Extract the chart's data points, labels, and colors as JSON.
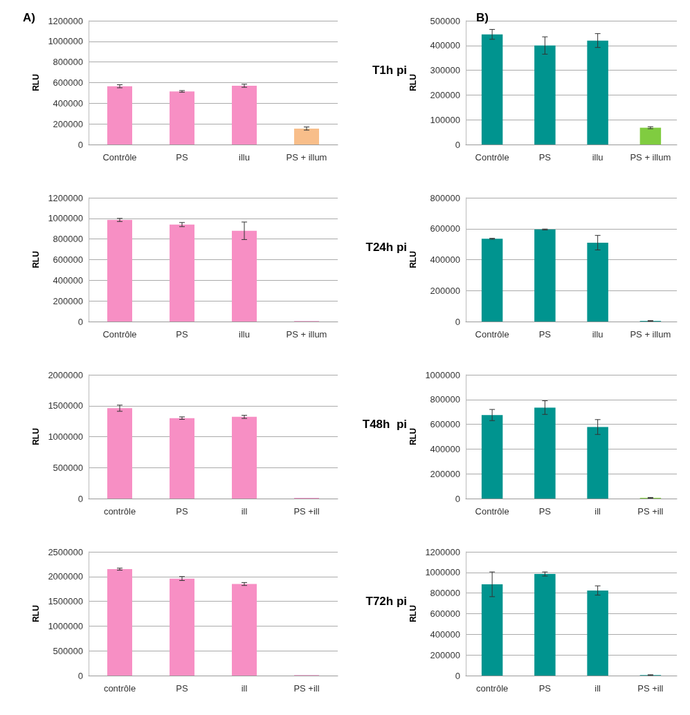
{
  "chart_data": [
    {
      "type": "bar",
      "title": "A)",
      "annotations": [
        "T1h pi"
      ],
      "ylabel": "RLU",
      "categories": [
        "Contrôle",
        "PS",
        "illu",
        "PS + illum"
      ],
      "values": [
        565000,
        515000,
        570000,
        155000
      ],
      "errors": [
        15000,
        8000,
        15000,
        15000
      ],
      "colors": [
        "#f78fc4",
        "#f78fc4",
        "#f78fc4",
        "#f8be8a"
      ],
      "ylim": [
        0,
        1200000
      ],
      "yticks": [
        0,
        200000,
        400000,
        600000,
        800000,
        1000000,
        1200000
      ],
      "grid": "y"
    },
    {
      "type": "bar",
      "title": "B)",
      "ylabel": "RLU",
      "categories": [
        "Contrôle",
        "PS",
        "illu",
        "PS + illum"
      ],
      "values": [
        445000,
        400000,
        420000,
        68000
      ],
      "errors": [
        20000,
        35000,
        28000,
        4000
      ],
      "colors": [
        "#00948f",
        "#00948f",
        "#00948f",
        "#80cc40"
      ],
      "ylim": [
        0,
        500000
      ],
      "yticks": [
        0,
        100000,
        200000,
        300000,
        400000,
        500000
      ],
      "grid": "y"
    },
    {
      "type": "bar",
      "annotations": [
        "T24h pi"
      ],
      "ylabel": "RLU",
      "categories": [
        "Contrôle",
        "PS",
        "illu",
        "PS + illum"
      ],
      "values": [
        985000,
        940000,
        880000,
        5000
      ],
      "errors": [
        15000,
        20000,
        85000,
        null
      ],
      "colors": [
        "#f78fc4",
        "#f78fc4",
        "#f78fc4",
        "#f78fc4"
      ],
      "ylim": [
        0,
        1200000
      ],
      "yticks": [
        0,
        200000,
        400000,
        600000,
        800000,
        1000000,
        1200000
      ],
      "grid": "y"
    },
    {
      "type": "bar",
      "ylabel": "RLU",
      "categories": [
        "Contrôle",
        "PS",
        "illu",
        "PS + illum"
      ],
      "values": [
        535000,
        595000,
        510000,
        4000
      ],
      "errors": [
        3000,
        3000,
        47000,
        2000
      ],
      "colors": [
        "#00948f",
        "#00948f",
        "#00948f",
        "#00948f"
      ],
      "ylim": [
        0,
        800000
      ],
      "yticks": [
        0,
        200000,
        400000,
        600000,
        800000
      ],
      "grid": "y"
    },
    {
      "type": "bar",
      "annotations": [
        "T48h  pi"
      ],
      "ylabel": "RLU",
      "categories": [
        "contrôle",
        "PS",
        "ill",
        "PS +ill"
      ],
      "values": [
        1460000,
        1300000,
        1320000,
        10000
      ],
      "errors": [
        50000,
        20000,
        25000,
        null
      ],
      "colors": [
        "#f78fc4",
        "#f78fc4",
        "#f78fc4",
        "#f78fc4"
      ],
      "ylim": [
        0,
        2000000
      ],
      "yticks": [
        0,
        500000,
        1000000,
        1500000,
        2000000
      ],
      "grid": "y"
    },
    {
      "type": "bar",
      "ylabel": "RLU",
      "categories": [
        "Contrôle",
        "PS",
        "ill",
        "PS +ill"
      ],
      "values": [
        675000,
        735000,
        578000,
        6000
      ],
      "errors": [
        45000,
        55000,
        60000,
        3000
      ],
      "colors": [
        "#00948f",
        "#00948f",
        "#00948f",
        "#80cc40"
      ],
      "ylim": [
        0,
        1000000
      ],
      "yticks": [
        0,
        200000,
        400000,
        600000,
        800000,
        1000000
      ],
      "grid": "y"
    },
    {
      "type": "bar",
      "annotations": [
        "T72h pi"
      ],
      "ylabel": "RLU",
      "categories": [
        "contrôle",
        "PS",
        "ill",
        "PS +ill"
      ],
      "values": [
        2150000,
        1960000,
        1850000,
        10000
      ],
      "errors": [
        20000,
        40000,
        30000,
        null
      ],
      "colors": [
        "#f78fc4",
        "#f78fc4",
        "#f78fc4",
        "#f78fc4"
      ],
      "ylim": [
        0,
        2500000
      ],
      "yticks": [
        0,
        500000,
        1000000,
        1500000,
        2000000,
        2500000
      ],
      "grid": "y"
    },
    {
      "type": "bar",
      "ylabel": "RLU",
      "categories": [
        "contrôle",
        "PS",
        "ill",
        "PS +ill"
      ],
      "values": [
        885000,
        985000,
        825000,
        5000
      ],
      "errors": [
        120000,
        20000,
        45000,
        3000
      ],
      "colors": [
        "#00948f",
        "#00948f",
        "#00948f",
        "#00948f"
      ],
      "ylim": [
        0,
        1200000
      ],
      "yticks": [
        0,
        200000,
        400000,
        600000,
        800000,
        1000000,
        1200000
      ],
      "grid": "y"
    }
  ]
}
